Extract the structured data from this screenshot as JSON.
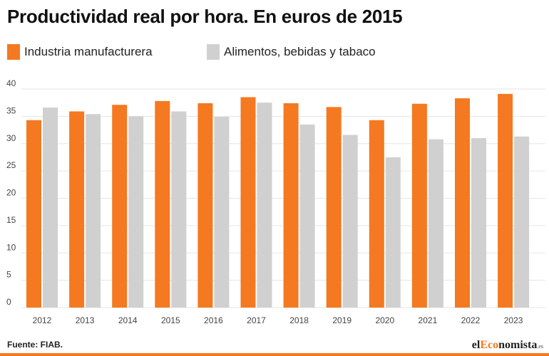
{
  "title": "Productividad real por hora. En euros de 2015",
  "source": "Fuente: FIAB.",
  "logo": {
    "text_prefix": "el",
    "text_highlight": "Eco",
    "text_rest": "nomista",
    "suffix": ".es"
  },
  "colors": {
    "series1": "#f47920",
    "series2": "#d0d0d0",
    "accent": "#f47920"
  },
  "chart_data": {
    "type": "bar",
    "title": "Productividad real por hora. En euros de 2015",
    "categories": [
      "2012",
      "2013",
      "2014",
      "2015",
      "2016",
      "2017",
      "2018",
      "2019",
      "2020",
      "2021",
      "2022",
      "2023"
    ],
    "series": [
      {
        "name": "Industria manufacturera",
        "values": [
          34.3,
          35.9,
          37.1,
          37.8,
          37.4,
          38.5,
          37.4,
          36.7,
          34.3,
          37.3,
          38.3,
          39.1
        ]
      },
      {
        "name": "Alimentos, bebidas y tabaco",
        "values": [
          36.6,
          35.4,
          35.0,
          35.9,
          34.9,
          37.5,
          33.5,
          31.6,
          27.5,
          30.8,
          31.0,
          31.3
        ]
      }
    ],
    "y_ticks": [
      0,
      5,
      10,
      15,
      20,
      25,
      30,
      35,
      40
    ],
    "ylim": [
      0,
      40
    ],
    "xlabel": "",
    "ylabel": "",
    "grid": true,
    "legend_position": "top"
  }
}
